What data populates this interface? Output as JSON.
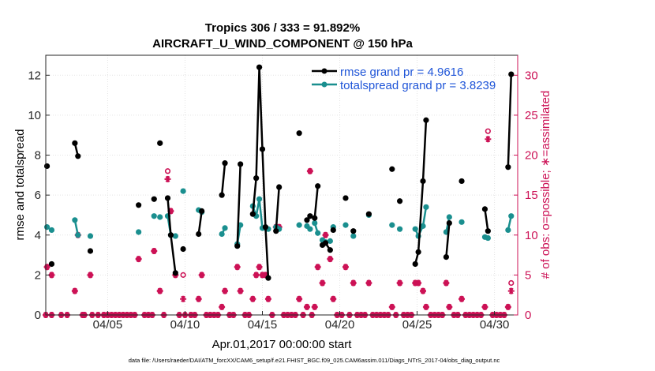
{
  "chart_data": {
    "type": "line",
    "title": "Tropics 306 / 333 = 91.892%",
    "subtitle": "AIRCRAFT_U_WIND_COMPONENT @ 150 hPa",
    "xlabel": "Apr.01,2017 00:00:00 start",
    "ylabel": "rmse and totalspread",
    "y2label": "# of obs: o=possible; ∗=assimilated",
    "footer": "data file: /Users/raeder/DAI/ATM_forcXX/CAM6_setup/f.e21.FHIST_BGC.f09_025.CAM6assim.011/Diags_NTrS_2017-04/obs_diag_output.nc",
    "xlim": [
      1.0,
      31.5
    ],
    "ylim": [
      0,
      13
    ],
    "y2lim": [
      0,
      32.5
    ],
    "xticks": [
      5,
      10,
      15,
      20,
      25,
      30
    ],
    "xticklabels": [
      "04/05",
      "04/10",
      "04/15",
      "04/20",
      "04/25",
      "04/30"
    ],
    "yticks": [
      0,
      2,
      4,
      6,
      8,
      10,
      12
    ],
    "yticklabels": [
      "0",
      "2",
      "4",
      "6",
      "8",
      "10",
      "12"
    ],
    "y2ticks": [
      0,
      5,
      10,
      15,
      20,
      25,
      30
    ],
    "y2ticklabels": [
      "0",
      "5",
      "10",
      "15",
      "20",
      "25",
      "30"
    ],
    "legend": [
      "rmse grand pr = 4.9616",
      "totalspread grand pr = 3.8239"
    ],
    "legend_position": "top-right",
    "grid": true,
    "series": [
      {
        "name": "rmse grand pr = 4.9616",
        "color": "#000000",
        "marker": "filled-circle",
        "segments": [
          [
            [
              1.08,
              7.45
            ]
          ],
          [
            [
              1.38,
              2.55
            ]
          ],
          [
            [
              2.88,
              8.6
            ],
            [
              3.08,
              7.95
            ]
          ],
          [
            [
              3.88,
              3.2
            ]
          ],
          [
            [
              7.0,
              5.5
            ]
          ],
          [
            [
              8.0,
              5.8
            ]
          ],
          [
            [
              8.38,
              8.6
            ]
          ],
          [
            [
              8.88,
              5.85
            ],
            [
              9.08,
              4.0
            ],
            [
              9.38,
              2.1
            ]
          ],
          [
            [
              9.88,
              3.3
            ]
          ],
          [
            [
              10.88,
              4.05
            ],
            [
              11.08,
              5.2
            ]
          ],
          [
            [
              12.38,
              6.0
            ],
            [
              12.58,
              7.6
            ]
          ],
          [
            [
              13.38,
              3.45
            ],
            [
              13.58,
              7.55
            ]
          ],
          [
            [
              14.38,
              5.05
            ],
            [
              14.6,
              6.85
            ],
            [
              14.8,
              12.4
            ],
            [
              15.0,
              8.3
            ],
            [
              15.2,
              4.4
            ],
            [
              15.38,
              1.85
            ]
          ],
          [
            [
              15.88,
              4.2
            ],
            [
              16.08,
              6.4
            ]
          ],
          [
            [
              17.38,
              9.1
            ]
          ],
          [
            [
              17.88,
              4.75
            ],
            [
              18.08,
              4.95
            ]
          ],
          [
            [
              18.38,
              4.85
            ],
            [
              18.58,
              6.45
            ]
          ],
          [
            [
              18.88,
              3.5
            ],
            [
              19.08,
              3.6
            ],
            [
              19.38,
              3.25
            ]
          ],
          [
            [
              19.58,
              4.25
            ]
          ],
          [
            [
              20.38,
              5.85
            ]
          ],
          [
            [
              20.88,
              4.2
            ]
          ],
          [
            [
              21.88,
              5.05
            ]
          ],
          [
            [
              23.38,
              7.3
            ]
          ],
          [
            [
              23.88,
              5.7
            ]
          ],
          [
            [
              24.88,
              2.55
            ],
            [
              25.08,
              3.15
            ],
            [
              25.38,
              6.7
            ],
            [
              25.58,
              9.75
            ]
          ],
          [
            [
              26.88,
              2.9
            ],
            [
              27.08,
              4.6
            ]
          ],
          [
            [
              27.88,
              6.7
            ]
          ],
          [
            [
              29.38,
              5.3
            ],
            [
              29.58,
              4.2
            ]
          ],
          [
            [
              30.88,
              7.4
            ],
            [
              31.08,
              12.05
            ]
          ]
        ]
      },
      {
        "name": "totalspread grand pr = 3.8239",
        "color": "#1a8f8f",
        "marker": "filled-circle",
        "segments": [
          [
            [
              1.08,
              4.4
            ]
          ],
          [
            [
              1.38,
              4.25
            ]
          ],
          [
            [
              2.88,
              4.75
            ],
            [
              3.08,
              4.0
            ]
          ],
          [
            [
              3.88,
              3.95
            ]
          ],
          [
            [
              7.0,
              4.15
            ]
          ],
          [
            [
              8.0,
              4.95
            ]
          ],
          [
            [
              8.38,
              4.9
            ]
          ],
          [
            [
              8.88,
              4.95
            ],
            [
              9.08,
              4.0
            ],
            [
              9.38,
              3.95
            ]
          ],
          [
            [
              9.88,
              6.2
            ]
          ],
          [
            [
              10.88,
              5.25
            ],
            [
              11.08,
              5.15
            ]
          ],
          [
            [
              12.38,
              4.05
            ],
            [
              12.58,
              4.35
            ]
          ],
          [
            [
              13.38,
              3.55
            ],
            [
              13.58,
              4.5
            ]
          ],
          [
            [
              14.38,
              5.45
            ],
            [
              14.6,
              4.95
            ],
            [
              14.8,
              5.8
            ],
            [
              15.0,
              4.35
            ],
            [
              15.2,
              4.35
            ],
            [
              15.38,
              4.3
            ]
          ],
          [
            [
              15.88,
              4.4
            ],
            [
              16.08,
              4.3
            ]
          ],
          [
            [
              17.38,
              4.5
            ]
          ],
          [
            [
              17.88,
              4.45
            ],
            [
              18.08,
              4.3
            ]
          ],
          [
            [
              18.38,
              4.6
            ],
            [
              18.58,
              4.1
            ]
          ],
          [
            [
              18.88,
              3.75
            ],
            [
              19.08,
              3.65
            ],
            [
              19.38,
              3.7
            ]
          ],
          [
            [
              19.58,
              4.4
            ]
          ],
          [
            [
              20.38,
              4.5
            ]
          ],
          [
            [
              20.88,
              3.95
            ]
          ],
          [
            [
              21.88,
              5.0
            ]
          ],
          [
            [
              23.38,
              4.5
            ]
          ],
          [
            [
              23.88,
              4.3
            ]
          ],
          [
            [
              24.88,
              4.3
            ],
            [
              25.08,
              3.95
            ],
            [
              25.38,
              4.45
            ],
            [
              25.58,
              5.4
            ]
          ],
          [
            [
              26.88,
              4.15
            ],
            [
              27.08,
              4.9
            ]
          ],
          [
            [
              27.88,
              4.65
            ]
          ],
          [
            [
              29.38,
              3.9
            ],
            [
              29.58,
              3.85
            ]
          ],
          [
            [
              30.88,
              4.25
            ],
            [
              31.08,
              4.95
            ]
          ]
        ]
      }
    ],
    "obs_possible": {
      "name": "possible",
      "color": "#cc1155",
      "marker": "open-circle",
      "axis": "right",
      "x": [
        1.08,
        1.38,
        2.88,
        3.08,
        3.88,
        7.0,
        8.0,
        8.38,
        8.88,
        9.08,
        9.38,
        9.88,
        10.88,
        11.08,
        12.38,
        12.58,
        13.38,
        13.58,
        14.38,
        14.6,
        14.8,
        15.0,
        15.2,
        15.38,
        15.88,
        16.08,
        17.38,
        17.88,
        18.08,
        18.38,
        18.58,
        18.88,
        19.08,
        19.38,
        19.58,
        20.38,
        20.88,
        21.88,
        23.38,
        23.88,
        24.88,
        25.08,
        25.38,
        25.58,
        26.88,
        27.08,
        27.88,
        29.38,
        29.58,
        30.88,
        31.08
      ],
      "y": [
        6,
        5,
        3,
        10,
        5,
        7,
        8,
        3,
        18,
        13,
        5,
        5,
        2,
        5,
        1,
        3,
        6,
        3,
        2,
        5,
        6,
        5,
        5,
        2,
        11,
        11,
        2,
        1,
        18,
        1,
        6,
        4,
        10,
        7,
        2,
        6,
        4,
        4,
        1,
        4,
        4,
        4,
        3,
        1,
        4,
        1,
        2,
        1,
        23,
        1,
        4
      ]
    },
    "obs_assimilated": {
      "name": "assimilated",
      "color": "#cc1155",
      "marker": "asterisk",
      "axis": "right",
      "x": [
        1.08,
        1.38,
        2.88,
        3.08,
        3.88,
        7.0,
        8.0,
        8.38,
        8.88,
        9.08,
        9.38,
        9.88,
        10.88,
        11.08,
        12.38,
        12.58,
        13.38,
        13.58,
        14.38,
        14.6,
        14.8,
        15.0,
        15.2,
        15.38,
        15.88,
        16.08,
        17.38,
        17.88,
        18.08,
        18.38,
        18.58,
        18.88,
        19.08,
        19.38,
        19.58,
        20.38,
        20.88,
        21.88,
        23.38,
        23.88,
        24.88,
        25.08,
        25.38,
        25.58,
        26.88,
        27.08,
        27.88,
        29.38,
        29.58,
        30.88,
        31.08
      ],
      "y": [
        6,
        5,
        3,
        10,
        5,
        7,
        8,
        3,
        17,
        13,
        5,
        2,
        2,
        5,
        1,
        3,
        6,
        3,
        2,
        5,
        6,
        5,
        5,
        2,
        11,
        11,
        2,
        1,
        18,
        1,
        6,
        4,
        10,
        7,
        2,
        6,
        4,
        4,
        1,
        4,
        4,
        4,
        3,
        1,
        4,
        1,
        2,
        1,
        22,
        1,
        3
      ],
      "zero_days": [
        1.0,
        1.38,
        2.0,
        2.38,
        3.38,
        3.5,
        4.0,
        4.38,
        4.75,
        5.0,
        5.25,
        5.5,
        5.75,
        6.0,
        6.25,
        6.5,
        6.75,
        7.38,
        7.63,
        7.88,
        8.63,
        9.63,
        10.0,
        10.38,
        10.63,
        11.38,
        11.63,
        11.88,
        12.13,
        12.88,
        13.13,
        13.88,
        14.13,
        15.63,
        16.38,
        16.63,
        16.88,
        17.13,
        17.63,
        18.2,
        19.83,
        20.13,
        20.63,
        21.13,
        21.38,
        21.63,
        22.13,
        22.38,
        22.63,
        22.88,
        23.13,
        23.63,
        24.13,
        24.38,
        24.63,
        25.88,
        26.13,
        26.38,
        26.63,
        27.38,
        27.63,
        28.13,
        28.38,
        28.63,
        28.88,
        29.13,
        29.88,
        30.13,
        30.38,
        30.63
      ]
    }
  }
}
